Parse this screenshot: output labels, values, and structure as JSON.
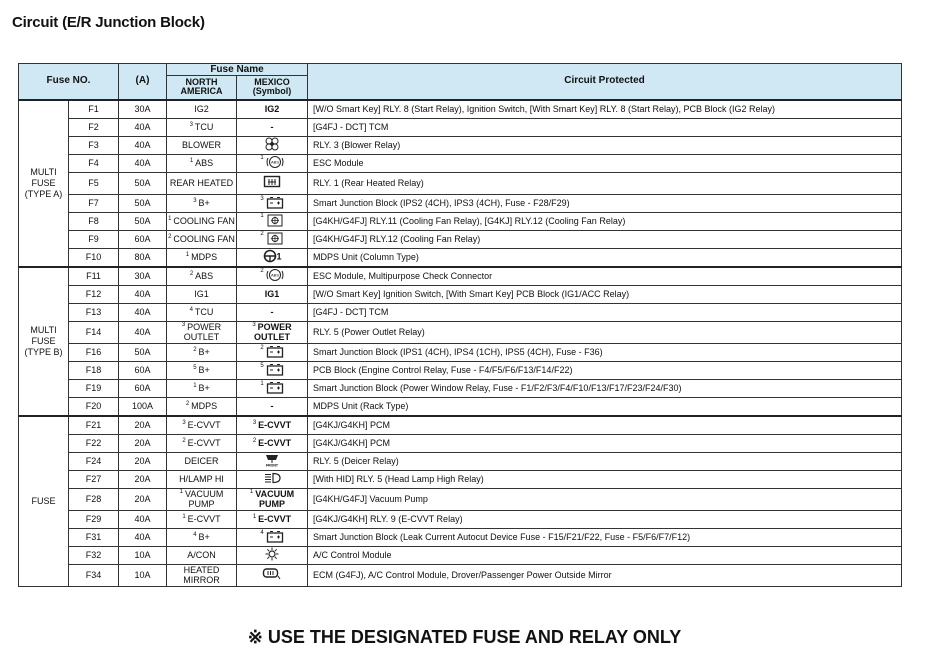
{
  "title": "Circuit (E/R Junction Block)",
  "header": {
    "fuse_no": "Fuse NO.",
    "amp": "(A)",
    "fuse_name": "Fuse Name",
    "north_america": "NORTH AMERICA",
    "mexico": "MEXICO (Symbol)",
    "circuit": "Circuit Protected"
  },
  "groups": [
    {
      "label": "MULTI FUSE (TYPE A)",
      "rows": [
        {
          "no": "F1",
          "amp": "30A",
          "na_sup": "",
          "na": "IG2",
          "mx_sup": "",
          "mx": "IG2",
          "mx_icon": "",
          "circuit": "[W/O Smart Key] RLY. 8 (Start Relay), Ignition Switch, [With Smart Key] RLY. 8 (Start Relay), PCB Block (IG2 Relay)"
        },
        {
          "no": "F2",
          "amp": "40A",
          "na_sup": "3",
          "na": "TCU",
          "mx_sup": "",
          "mx": "-",
          "mx_icon": "",
          "circuit": "[G4FJ - DCT] TCM"
        },
        {
          "no": "F3",
          "amp": "40A",
          "na_sup": "",
          "na": "BLOWER",
          "mx_sup": "",
          "mx": "",
          "mx_icon": "blower-fan-icon",
          "circuit": "RLY. 3 (Blower Relay)"
        },
        {
          "no": "F4",
          "amp": "40A",
          "na_sup": "1",
          "na": "ABS",
          "mx_sup": "1",
          "mx": "",
          "mx_icon": "abs-icon",
          "circuit": "ESC Module"
        },
        {
          "no": "F5",
          "amp": "50A",
          "na_sup": "",
          "na": "REAR HEATED",
          "mx_sup": "",
          "mx": "",
          "mx_icon": "rear-defrost-icon",
          "circuit": "RLY. 1 (Rear Heated Relay)",
          "tall": true
        },
        {
          "no": "F7",
          "amp": "50A",
          "na_sup": "3",
          "na": "B+",
          "mx_sup": "3",
          "mx": "",
          "mx_icon": "battery-icon",
          "circuit": "Smart Junction Block (IPS2 (4CH), IPS3 (4CH), Fuse - F28/F29)"
        },
        {
          "no": "F8",
          "amp": "50A",
          "na_sup": "1",
          "na": "COOLING FAN",
          "mx_sup": "1",
          "mx": "",
          "mx_icon": "cooling-fan-icon",
          "circuit": "[G4KH/G4FJ] RLY.11 (Cooling Fan Relay), [G4KJ] RLY.12 (Cooling Fan Relay)"
        },
        {
          "no": "F9",
          "amp": "60A",
          "na_sup": "2",
          "na": "COOLING FAN",
          "mx_sup": "2",
          "mx": "",
          "mx_icon": "cooling-fan-icon",
          "circuit": "[G4KH/G4FJ] RLY.12 (Cooling Fan Relay)"
        },
        {
          "no": "F10",
          "amp": "80A",
          "na_sup": "1",
          "na": "MDPS",
          "mx_sup": "",
          "mx": "1",
          "mx_icon": "steering-wheel-icon",
          "circuit": "MDPS Unit (Column Type)"
        }
      ]
    },
    {
      "label": "MULTI FUSE (TYPE B)",
      "rows": [
        {
          "no": "F11",
          "amp": "30A",
          "na_sup": "2",
          "na": "ABS",
          "mx_sup": "2",
          "mx": "",
          "mx_icon": "abs-icon",
          "circuit": "ESC Module, Multipurpose Check Connector"
        },
        {
          "no": "F12",
          "amp": "40A",
          "na_sup": "",
          "na": "IG1",
          "mx_sup": "",
          "mx": "IG1",
          "mx_icon": "",
          "circuit": "[W/O Smart Key] Ignition Switch, [With Smart Key] PCB Block (IG1/ACC Relay)"
        },
        {
          "no": "F13",
          "amp": "40A",
          "na_sup": "4",
          "na": "TCU",
          "mx_sup": "",
          "mx": "-",
          "mx_icon": "",
          "circuit": "[G4FJ - DCT] TCM"
        },
        {
          "no": "F14",
          "amp": "40A",
          "na_sup": "3",
          "na": "POWER OUTLET",
          "mx_sup": "3",
          "mx": "POWER OUTLET",
          "mx_icon": "",
          "circuit": "RLY. 5 (Power Outlet Relay)",
          "tall": true
        },
        {
          "no": "F16",
          "amp": "50A",
          "na_sup": "2",
          "na": "B+",
          "mx_sup": "2",
          "mx": "",
          "mx_icon": "battery-icon",
          "circuit": "Smart Junction Block (IPS1 (4CH), IPS4 (1CH), IPS5 (4CH), Fuse - F36)"
        },
        {
          "no": "F18",
          "amp": "60A",
          "na_sup": "5",
          "na": "B+",
          "mx_sup": "5",
          "mx": "",
          "mx_icon": "battery-icon",
          "circuit": "PCB Block (Engine Control Relay, Fuse - F4/F5/F6/F13/F14/F22)"
        },
        {
          "no": "F19",
          "amp": "60A",
          "na_sup": "1",
          "na": "B+",
          "mx_sup": "1",
          "mx": "",
          "mx_icon": "battery-icon",
          "circuit": "Smart Junction Block (Power Window Relay, Fuse - F1/F2/F3/F4/F10/F13/F17/F23/F24/F30)"
        },
        {
          "no": "F20",
          "amp": "100A",
          "na_sup": "2",
          "na": "MDPS",
          "mx_sup": "",
          "mx": "-",
          "mx_icon": "",
          "circuit": "MDPS Unit (Rack Type)"
        }
      ]
    },
    {
      "label": "FUSE",
      "rows": [
        {
          "no": "F21",
          "amp": "20A",
          "na_sup": "3",
          "na": "E-CVVT",
          "mx_sup": "3",
          "mx": "E-CVVT",
          "mx_icon": "",
          "circuit": "[G4KJ/G4KH] PCM"
        },
        {
          "no": "F22",
          "amp": "20A",
          "na_sup": "2",
          "na": "E-CVVT",
          "mx_sup": "2",
          "mx": "E-CVVT",
          "mx_icon": "",
          "circuit": "[G4KJ/G4KH] PCM"
        },
        {
          "no": "F24",
          "amp": "20A",
          "na_sup": "",
          "na": "DEICER",
          "mx_sup": "",
          "mx": "",
          "mx_icon": "front-deicer-icon",
          "circuit": "RLY. 5 (Deicer Relay)"
        },
        {
          "no": "F27",
          "amp": "20A",
          "na_sup": "",
          "na": "H/LAMP HI",
          "mx_sup": "",
          "mx": "",
          "mx_icon": "high-beam-icon",
          "circuit": "[With HID] RLY. 5 (Head Lamp High Relay)"
        },
        {
          "no": "F28",
          "amp": "20A",
          "na_sup": "1",
          "na": "VACUUM PUMP",
          "mx_sup": "1",
          "mx": "VACUUM PUMP",
          "mx_icon": "",
          "circuit": "[G4KH/G4FJ] Vacuum Pump",
          "tall": true
        },
        {
          "no": "F29",
          "amp": "40A",
          "na_sup": "1",
          "na": "E-CVVT",
          "mx_sup": "1",
          "mx": "E-CVVT",
          "mx_icon": "",
          "circuit": "[G4KJ/G4KH] RLY. 9 (E-CVVT Relay)"
        },
        {
          "no": "F31",
          "amp": "40A",
          "na_sup": "4",
          "na": "B+",
          "mx_sup": "4",
          "mx": "",
          "mx_icon": "battery-icon",
          "circuit": "Smart Junction Block (Leak Current Autocut Device Fuse - F15/F21/F22, Fuse - F5/F6/F7/F12)"
        },
        {
          "no": "F32",
          "amp": "10A",
          "na_sup": "",
          "na": "A/CON",
          "mx_sup": "",
          "mx": "",
          "mx_icon": "ac-icon",
          "circuit": "A/C Control Module"
        },
        {
          "no": "F34",
          "amp": "10A",
          "na_sup": "",
          "na": "HEATED MIRROR",
          "mx_sup": "",
          "mx": "",
          "mx_icon": "heated-mirror-icon",
          "circuit": "ECM (G4FJ), A/C Control Module, Drover/Passenger Power Outside Mirror",
          "tall": true
        }
      ]
    }
  ],
  "footer": "※ USE THE DESIGNATED FUSE AND RELAY ONLY"
}
